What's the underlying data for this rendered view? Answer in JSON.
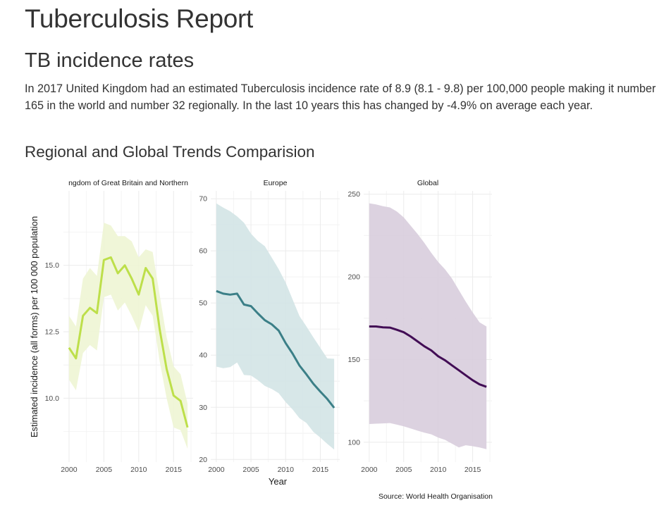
{
  "page": {
    "title": "Tuberculosis Report",
    "section_title": "TB incidence rates",
    "paragraph": "In 2017 United Kingdom had an estimated Tuberculosis incidence rate of 8.9 (8.1 - 9.8) per 100,000 people making it number 165 in the world and number 32 regionally. In the last 10 years this has changed by -4.9% on average each year.",
    "subsection_title": "Regional and Global Trends Comparision"
  },
  "chart_data": {
    "type": "area",
    "description": "Faceted line charts with uncertainty ribbons",
    "xlabel": "Year",
    "ylabel": "Estimated incidence (all forms) per 100 000 population",
    "caption": "Source: World Health Organisation",
    "grid": true,
    "x": [
      2000,
      2001,
      2002,
      2003,
      2004,
      2005,
      2006,
      2007,
      2008,
      2009,
      2010,
      2011,
      2012,
      2013,
      2014,
      2015,
      2016,
      2017
    ],
    "x_ticks": [
      2000,
      2005,
      2010,
      2015
    ],
    "panels": [
      {
        "name": "United Kingdom of Great Britain and Northern Ireland",
        "strip_label": "ngdom of Great Britain and Northern",
        "color": "#bddf4a",
        "ribbon_color": "#eef5d4",
        "ylim": [
          7.6,
          17.8
        ],
        "y_ticks": [
          10.0,
          12.5,
          15.0
        ],
        "y_tick_labels": [
          "10.0",
          "12.5",
          "15.0"
        ],
        "values": [
          11.9,
          11.5,
          13.1,
          13.4,
          13.2,
          15.2,
          15.3,
          14.7,
          15.0,
          14.5,
          13.9,
          14.9,
          14.5,
          12.6,
          11.1,
          10.1,
          9.9,
          8.9
        ],
        "lower": [
          10.7,
          10.3,
          11.7,
          12.0,
          11.8,
          13.8,
          13.9,
          13.3,
          13.6,
          13.1,
          12.5,
          13.5,
          13.1,
          11.4,
          10.0,
          8.9,
          8.8,
          8.1
        ],
        "upper": [
          13.1,
          12.7,
          14.5,
          14.9,
          14.6,
          16.6,
          16.5,
          16.1,
          16.1,
          15.9,
          15.3,
          15.6,
          15.5,
          13.9,
          12.3,
          11.2,
          10.9,
          9.8
        ]
      },
      {
        "name": "Europe",
        "strip_label": "Europe",
        "color": "#3b7f87",
        "ribbon_color": "#d3e4e6",
        "ylim": [
          19.5,
          71.5
        ],
        "y_ticks": [
          20,
          30,
          40,
          50,
          60,
          70
        ],
        "y_tick_labels": [
          "20",
          "30",
          "40",
          "50",
          "60",
          "70"
        ],
        "values": [
          52.3,
          51.8,
          51.6,
          51.8,
          49.7,
          49.4,
          48.0,
          46.7,
          45.9,
          44.7,
          42.3,
          40.3,
          38.0,
          36.3,
          34.5,
          33.0,
          31.6,
          29.9
        ],
        "lower": [
          37.8,
          37.5,
          37.7,
          38.6,
          36.2,
          36.1,
          35.2,
          34.1,
          33.5,
          32.7,
          31.0,
          29.6,
          27.9,
          27.0,
          25.3,
          24.2,
          23.0,
          21.9
        ],
        "upper": [
          69.1,
          68.3,
          67.6,
          66.6,
          65.4,
          63.3,
          61.9,
          60.9,
          58.7,
          56.5,
          53.9,
          50.7,
          47.5,
          45.5,
          43.4,
          41.4,
          39.4,
          39.3
        ]
      },
      {
        "name": "Global",
        "strip_label": "Global",
        "color": "#420d55",
        "ribbon_color": "#d8cddd",
        "ylim": [
          88,
          252
        ],
        "y_ticks": [
          100,
          150,
          200,
          250
        ],
        "y_tick_labels": [
          "100",
          "150",
          "200",
          "250"
        ],
        "values": [
          170.0,
          170.0,
          169.5,
          169.3,
          168.0,
          166.5,
          164.0,
          161.0,
          158.0,
          155.5,
          152.0,
          149.5,
          146.5,
          143.5,
          140.5,
          137.5,
          135.0,
          133.5
        ],
        "lower": [
          111.0,
          111.2,
          111.4,
          111.6,
          110.6,
          109.6,
          108.3,
          107.0,
          105.8,
          104.8,
          102.8,
          101.4,
          99.1,
          96.8,
          98.2,
          97.6,
          96.8,
          95.8
        ],
        "upper": [
          244.5,
          243.8,
          242.7,
          242.0,
          239.5,
          236.0,
          231.0,
          226.0,
          220.5,
          214.5,
          209.0,
          204.5,
          199.0,
          192.0,
          185.0,
          178.5,
          172.5,
          170.0
        ]
      }
    ]
  }
}
